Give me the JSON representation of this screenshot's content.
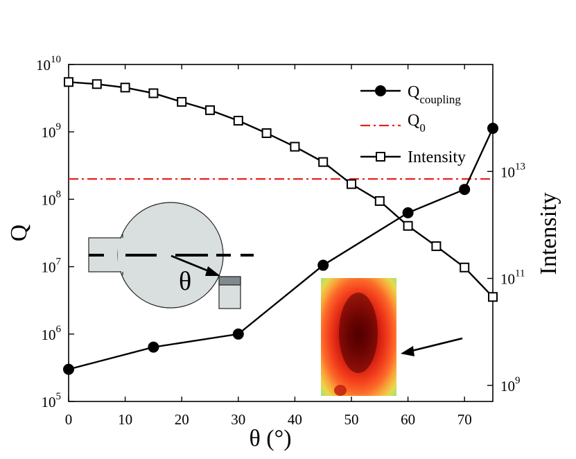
{
  "chart_data": {
    "type": "line",
    "x_label": "θ (°)",
    "y_label_left": "Q",
    "y_label_right": "Intensity",
    "x_range": [
      0,
      75
    ],
    "x_ticks": [
      0,
      10,
      20,
      30,
      40,
      50,
      60,
      70
    ],
    "y_left_scale": "log",
    "y_left_range": [
      100000,
      10000000000
    ],
    "y_left_ticks": [
      {
        "base": "10",
        "exp": "5"
      },
      {
        "base": "10",
        "exp": "6"
      },
      {
        "base": "10",
        "exp": "7"
      },
      {
        "base": "10",
        "exp": "8"
      },
      {
        "base": "10",
        "exp": "9"
      },
      {
        "base": "10",
        "exp": "10"
      }
    ],
    "y_right_scale": "log",
    "y_right_range": [
      500000000,
      1000000000000000
    ],
    "y_right_ticks": [
      {
        "base": "10",
        "exp": "9",
        "value": 1000000000
      },
      {
        "base": "10",
        "exp": "11",
        "value": 100000000000
      },
      {
        "base": "10",
        "exp": "13",
        "value": 10000000000000
      }
    ],
    "series": [
      {
        "name": "Q_coupling",
        "axis": "left",
        "marker": "filled-circle",
        "x": [
          0,
          15,
          30,
          45,
          60,
          70,
          75
        ],
        "y": [
          300000,
          640000,
          1000000,
          10500000,
          63000000,
          140000000,
          1130000000
        ]
      },
      {
        "name": "Q_0",
        "axis": "left",
        "style": "dash-dot",
        "color": "#e8231e",
        "y_const": 200000000
      },
      {
        "name": "Intensity",
        "axis": "right",
        "marker": "open-square",
        "x": [
          0,
          5,
          10,
          15,
          20,
          25,
          30,
          35,
          40,
          45,
          50,
          55,
          60,
          65,
          70,
          75
        ],
        "y": [
          470000000000000,
          430000000000000,
          370000000000000,
          290000000000000,
          200000000000000,
          140000000000000,
          89000000000000,
          52000000000000,
          29000000000000,
          15000000000000,
          5800000000000,
          2800000000000,
          960000000000,
          400000000000,
          160000000000,
          45000000000
        ]
      }
    ],
    "legend": [
      {
        "main": "Q",
        "sub": "coupling"
      },
      {
        "main": "Q",
        "sub": "0"
      },
      {
        "main": "Intensity",
        "sub": ""
      }
    ],
    "annotations": {
      "inset_theta_label": "θ"
    },
    "colors": {
      "line": "#000000",
      "q0": "#e8231e",
      "schematic_fill": "#d9dfdf",
      "detector_dark": "#808a8c"
    }
  }
}
